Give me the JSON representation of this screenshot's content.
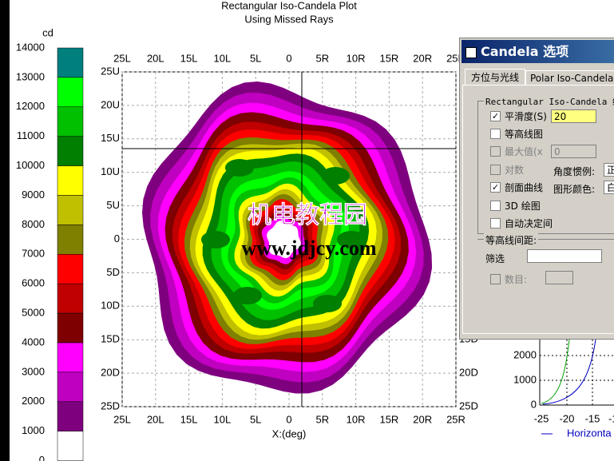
{
  "plot": {
    "title": [
      "Rectangular Iso-Candela Plot",
      "Using Missed Rays"
    ],
    "unit": "cd",
    "legend_levels": [
      14000,
      13000,
      12000,
      11000,
      10000,
      9000,
      8000,
      7000,
      6000,
      5000,
      4000,
      3000,
      2000,
      1000,
      0
    ],
    "legend_colors": [
      "#007f7f",
      "#00ff00",
      "#00c000",
      "#007f00",
      "#ffff00",
      "#c0c000",
      "#7f7f00",
      "#ff0000",
      "#c00000",
      "#7f0000",
      "#ff00ff",
      "#c000c0",
      "#7f007f",
      "#ffffff"
    ],
    "x_ticks": [
      "25L",
      "20L",
      "15L",
      "10L",
      "5L",
      "0",
      "5R",
      "10R",
      "15R",
      "20R",
      "25R"
    ],
    "y_ticks": [
      "25U",
      "20U",
      "15U",
      "10U",
      "5U",
      "0",
      "5D",
      "10D",
      "15D",
      "20D",
      "25D"
    ],
    "right_ticks": [
      "15D",
      "20D",
      "25D"
    ],
    "x_label": "X:(deg)",
    "watermark": [
      "机电教程园",
      "www.jdjcy.com"
    ]
  },
  "dialog": {
    "title": "Candela 选项",
    "tabs": [
      "方位与光线",
      "Polar Iso-Candela"
    ],
    "group": "Rectangular Iso-Candela 绘图",
    "smooth": "平滑度(S)",
    "smooth_value": "20",
    "contour": "等高线图",
    "max": "最大值(x",
    "max_value": "0",
    "log": "对数",
    "angle": "角度惯例:",
    "angle_value": "正",
    "profile": "剖面曲线",
    "color": "图形颜色:",
    "color_value": "白",
    "plot3d": "3D 绘图",
    "auto": "自动决定间",
    "spacing": "等高线间距:",
    "filter": "筛选",
    "count": "数目:"
  },
  "side_chart": {
    "yticks": [
      "2000",
      "1000",
      "0"
    ],
    "xticks": [
      "-25",
      "-20",
      "-15",
      "-1"
    ],
    "legend": "Horizonta"
  }
}
